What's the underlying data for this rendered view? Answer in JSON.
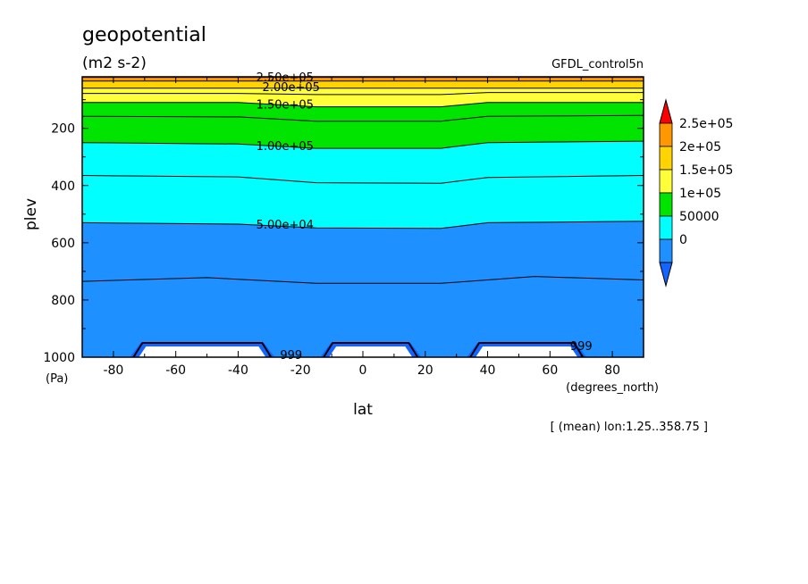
{
  "chart_data": {
    "type": "contour",
    "title": "geopotential",
    "units": "(m2 s-2)",
    "source": "GFDL_control5n",
    "xlabel": "lat",
    "xunits": "(degrees_north)",
    "ylabel": "plev",
    "yunits": "(Pa)",
    "annotation": "[ (mean) lon:1.25..358.75 ]",
    "xlim": [
      -90,
      90
    ],
    "ylim": [
      1000,
      20
    ],
    "yscale": "linear",
    "y_reversed": true,
    "x_ticks": [
      -80,
      -60,
      -40,
      -20,
      0,
      20,
      40,
      60,
      80
    ],
    "y_ticks": [
      200,
      400,
      600,
      800,
      1000
    ],
    "levels": [
      0,
      50000,
      100000,
      150000,
      200000,
      250000
    ],
    "colorbar": {
      "labels": [
        "2.5e+05",
        "2e+05",
        "1.5e+05",
        "1e+05",
        "50000",
        "0"
      ],
      "colors": [
        "#ff9800",
        "#ffd400",
        "#ffff3a",
        "#00e400",
        "#00ffff",
        "#1e90ff",
        "#1464ff"
      ],
      "over_color": "#ff0000",
      "under_color": "#1464ff"
    },
    "contour_labels": [
      {
        "text": "2.50e+05",
        "lat": -25,
        "plev": 20
      },
      {
        "text": "2.00e+05",
        "lat": -23,
        "plev": 55
      },
      {
        "text": "1.50e+05",
        "lat": -25,
        "plev": 115
      },
      {
        "text": "1.00e+05",
        "lat": -25,
        "plev": 260
      },
      {
        "text": "5.00e+04",
        "lat": -25,
        "plev": 535
      },
      {
        "text": "999",
        "lat": -23,
        "plev": 990
      },
      {
        "text": "999",
        "lat": 70,
        "plev": 960
      }
    ],
    "contour_lines": [
      {
        "value": 250000,
        "fill": "#ff9800",
        "points": [
          [
            -90,
            22
          ],
          [
            90,
            22
          ]
        ]
      },
      {
        "value": 225000,
        "fill": "#ffd400",
        "points": [
          [
            -90,
            35
          ],
          [
            90,
            35
          ]
        ]
      },
      {
        "value": 200000,
        "fill": "#ffff3a",
        "points": [
          [
            -90,
            60
          ],
          [
            -40,
            60
          ],
          [
            -15,
            60
          ],
          [
            25,
            60
          ],
          [
            90,
            60
          ]
        ]
      },
      {
        "value": 175000,
        "fill": "#ffff3a",
        "points": [
          [
            -90,
            78
          ],
          [
            -40,
            78
          ],
          [
            -15,
            82
          ],
          [
            25,
            82
          ],
          [
            40,
            75
          ],
          [
            90,
            75
          ]
        ]
      },
      {
        "value": 150000,
        "fill": "#00e400",
        "points": [
          [
            -90,
            110
          ],
          [
            -40,
            110
          ],
          [
            -15,
            125
          ],
          [
            25,
            125
          ],
          [
            40,
            110
          ],
          [
            90,
            110
          ]
        ]
      },
      {
        "value": 125000,
        "fill": "#00e400",
        "points": [
          [
            -90,
            158
          ],
          [
            -40,
            160
          ],
          [
            -15,
            175
          ],
          [
            25,
            175
          ],
          [
            40,
            158
          ],
          [
            90,
            155
          ]
        ]
      },
      {
        "value": 100000,
        "fill": "#00ffff",
        "points": [
          [
            -90,
            250
          ],
          [
            -40,
            255
          ],
          [
            -15,
            270
          ],
          [
            25,
            270
          ],
          [
            40,
            250
          ],
          [
            90,
            245
          ]
        ]
      },
      {
        "value": 75000,
        "fill": "#00ffff",
        "points": [
          [
            -90,
            365
          ],
          [
            -40,
            370
          ],
          [
            -15,
            390
          ],
          [
            25,
            392
          ],
          [
            40,
            372
          ],
          [
            90,
            365
          ]
        ]
      },
      {
        "value": 50000,
        "fill": "#1e90ff",
        "points": [
          [
            -90,
            530
          ],
          [
            -40,
            535
          ],
          [
            -15,
            548
          ],
          [
            25,
            550
          ],
          [
            40,
            530
          ],
          [
            90,
            525
          ]
        ]
      },
      {
        "value": 25000,
        "fill": "#1e90ff",
        "points": [
          [
            -90,
            735
          ],
          [
            -50,
            722
          ],
          [
            -15,
            742
          ],
          [
            25,
            742
          ],
          [
            55,
            718
          ],
          [
            90,
            730
          ]
        ]
      }
    ],
    "masked_regions": [
      {
        "lat": [
          -73,
          -30
        ],
        "plev_top": 950
      },
      {
        "lat": [
          -12,
          17
        ],
        "plev_top": 950
      },
      {
        "lat": [
          35,
          70
        ],
        "plev_top": 950
      }
    ],
    "legend": "right"
  }
}
